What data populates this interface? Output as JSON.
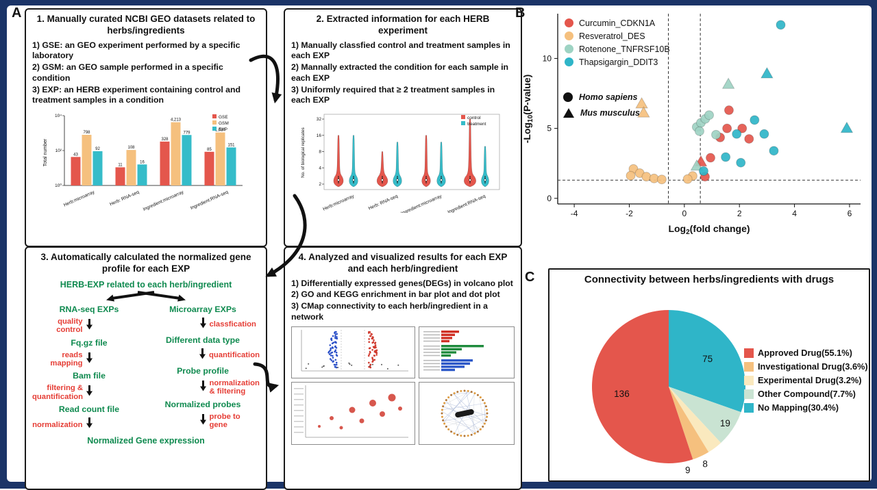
{
  "labels": {
    "a": "A",
    "b": "B",
    "c": "C"
  },
  "frame_color": "#1b3467",
  "box1": {
    "title": "1. Manually curated NCBI GEO datasets related to herbs/ingredients",
    "items": [
      "1) GSE: an GEO experiment performed by a specific laboratory",
      "2) GSM: an GEO sample performed in a specific condition",
      "3) EXP: an HERB experiment containing control and treatment samples in a condition"
    ]
  },
  "box2": {
    "title": "2. Extracted information for each HERB experiment",
    "items": [
      "1) Manually classfied control and treatment samples in each EXP",
      "2) Mannally extracted the condition for each sample in each EXP",
      "3) Uniformly required that ≥ 2 treatment samples in each EXP"
    ]
  },
  "box3": {
    "title": "3. Automatically calculated the normalized gene profile for each EXP",
    "root": "HERB-EXP related to each herb/ingredient",
    "left": {
      "head": "RNA-seq EXPs",
      "steps": [
        {
          "action": "quality control",
          "node": "Fq.gz file"
        },
        {
          "action": "reads mapping",
          "node": "Bam file"
        },
        {
          "action": "filtering & quantification",
          "node": "Read count file"
        },
        {
          "action": "normalization",
          "node": null
        }
      ]
    },
    "right": {
      "head": "Microarray EXPs",
      "steps": [
        {
          "action": "classfication",
          "node": "Different data type"
        },
        {
          "action": "quantification",
          "node": "Probe profile"
        },
        {
          "action": "normalization & filtering",
          "node": "Normalized probes"
        },
        {
          "action": "probe to gene",
          "node": null
        }
      ]
    },
    "result": "Normalized Gene expression"
  },
  "box4": {
    "title": "4. Analyzed and visualized results for each EXP and each herb/ingredient",
    "items": [
      "1) Differentially expressed genes(DEGs) in volcano plot",
      "2) GO and KEGG enrichment in bar plot and dot plot",
      "3) CMap connectivity to each herb/ingredient in a network"
    ]
  },
  "chart_data": [
    {
      "id": "geo-dataset-counts",
      "type": "bar",
      "ylabel": "Total number",
      "yscale": "log10",
      "yticks": [
        "10⁰",
        "10²",
        "10⁴"
      ],
      "categories": [
        "Herb:microarray",
        "Herb: RNA-seq",
        "Ingredient:microarray",
        "Ingredient:RNA-seq"
      ],
      "series": [
        {
          "name": "GSE",
          "color": "#e4564c",
          "values": [
            43,
            11,
            328,
            85
          ]
        },
        {
          "name": "GSM",
          "color": "#f5c07e",
          "values": [
            798,
            108,
            4213,
            1087
          ]
        },
        {
          "name": "EXP",
          "color": "#35bcc9",
          "values": [
            92,
            16,
            779,
            151
          ]
        }
      ],
      "value_labels": [
        [
          "43",
          "798",
          "92"
        ],
        [
          "11",
          "108",
          "16"
        ],
        [
          "328",
          "4,213",
          "779"
        ],
        [
          "85",
          "1,087",
          "151"
        ]
      ]
    },
    {
      "id": "biological-replicates",
      "type": "violin",
      "ylabel": "No. of biological replicates",
      "yticks": [
        32,
        16,
        8,
        4,
        2
      ],
      "categories": [
        "Herb:microarray",
        "Herb: RNA-seq",
        "Ingredient:microarray",
        "Ingredient:RNA-seq"
      ],
      "groups": [
        {
          "name": "control",
          "color": "#e4564c"
        },
        {
          "name": "treatment",
          "color": "#35bcc9"
        }
      ],
      "approx_median_replicates": 3
    },
    {
      "id": "example-volcano",
      "type": "scatter",
      "xlabel": {
        "pre": "Log",
        "sub": "2",
        "post": "(fold change)"
      },
      "ylabel": {
        "pre": "-Log",
        "sub": "10",
        "post": "(P-value)"
      },
      "xlim": [
        -4.6,
        6.4
      ],
      "ylim": [
        -0.4,
        13.2
      ],
      "xticks": [
        -4,
        -2,
        0,
        2,
        4,
        6
      ],
      "yticks": [
        0,
        5,
        10
      ],
      "hline": 1.3,
      "vlines": [
        -0.58,
        0.58
      ],
      "series": [
        {
          "name": "Curcumin_CDKN1A",
          "color": "#e4564c"
        },
        {
          "name": "Resveratrol_DES",
          "color": "#f5c07e"
        },
        {
          "name": "Rotenone_TNFRSF10B",
          "color": "#9ed3c3"
        },
        {
          "name": "Thapsigargin_DDIT3",
          "color": "#2fb5c8"
        }
      ],
      "shape_legend": [
        {
          "shape": "circle",
          "label": "Homo sapiens"
        },
        {
          "shape": "triangle",
          "label": "Mus musculus"
        }
      ],
      "points": [
        [
          1.62,
          6.3,
          0,
          "c"
        ],
        [
          1.55,
          5.0,
          0,
          "c"
        ],
        [
          2.1,
          5.0,
          0,
          "c"
        ],
        [
          1.3,
          4.35,
          0,
          "c"
        ],
        [
          2.35,
          4.25,
          0,
          "c"
        ],
        [
          0.95,
          2.9,
          0,
          "c"
        ],
        [
          0.6,
          2.6,
          0,
          "t"
        ],
        [
          0.75,
          1.55,
          0,
          "c"
        ],
        [
          -1.55,
          6.75,
          1,
          "t"
        ],
        [
          -1.48,
          6.1,
          1,
          "t"
        ],
        [
          -1.85,
          2.1,
          1,
          "c"
        ],
        [
          -1.62,
          1.8,
          1,
          "c"
        ],
        [
          -1.95,
          1.62,
          1,
          "c"
        ],
        [
          -1.38,
          1.55,
          1,
          "c"
        ],
        [
          -1.1,
          1.42,
          1,
          "c"
        ],
        [
          -0.82,
          1.35,
          1,
          "c"
        ],
        [
          0.3,
          1.6,
          1,
          "c"
        ],
        [
          0.12,
          1.38,
          1,
          "c"
        ],
        [
          1.6,
          8.15,
          2,
          "t"
        ],
        [
          0.45,
          5.1,
          2,
          "c"
        ],
        [
          0.6,
          5.4,
          2,
          "c"
        ],
        [
          0.76,
          5.68,
          2,
          "c"
        ],
        [
          0.9,
          5.95,
          2,
          "c"
        ],
        [
          0.55,
          4.8,
          2,
          "c"
        ],
        [
          1.15,
          4.55,
          2,
          "c"
        ],
        [
          0.45,
          2.3,
          2,
          "t"
        ],
        [
          3.5,
          12.4,
          3,
          "c"
        ],
        [
          3.0,
          8.9,
          3,
          "t"
        ],
        [
          5.9,
          5.0,
          3,
          "t"
        ],
        [
          2.55,
          5.6,
          3,
          "c"
        ],
        [
          1.9,
          4.6,
          3,
          "c"
        ],
        [
          2.9,
          4.6,
          3,
          "c"
        ],
        [
          3.25,
          3.4,
          3,
          "c"
        ],
        [
          1.5,
          2.95,
          3,
          "c"
        ],
        [
          0.7,
          1.95,
          3,
          "c"
        ],
        [
          2.05,
          2.55,
          3,
          "c"
        ]
      ]
    },
    {
      "id": "drug-connectivity",
      "type": "pie",
      "title": "Connectivity between herbs/ingredients with drugs",
      "slices": [
        {
          "label": "Approved Drug(55.1%)",
          "value": 136,
          "pct": 55.1,
          "color": "#e4564c"
        },
        {
          "label": "Investigational Drug(3.6%)",
          "value": 9,
          "pct": 3.6,
          "color": "#f5c07e"
        },
        {
          "label": "Experimental Drug(3.2%)",
          "value": 8,
          "pct": 3.2,
          "color": "#fae9be"
        },
        {
          "label": "Other Compound(7.7%)",
          "value": 19,
          "pct": 7.7,
          "color": "#c9e3d2"
        },
        {
          "label": "No Mapping(30.4%)",
          "value": 75,
          "pct": 30.4,
          "color": "#2fb5c8"
        }
      ],
      "clockwise_draw_order": [
        4,
        3,
        2,
        1,
        0
      ],
      "start_angle_deg": 0
    }
  ]
}
